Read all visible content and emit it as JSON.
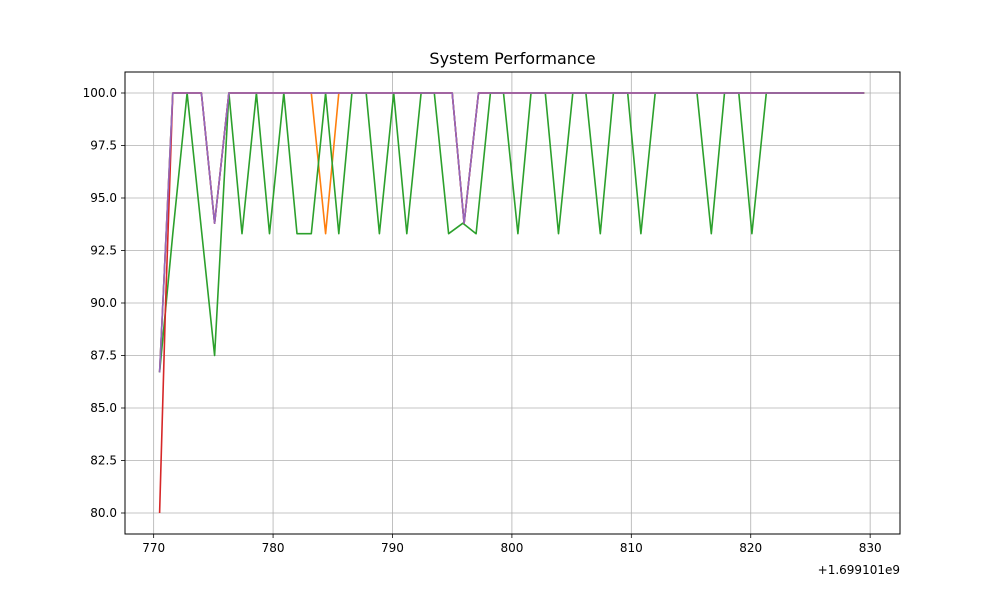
{
  "chart_data": {
    "type": "line",
    "title": "System Performance",
    "xlabel": "",
    "ylabel": "",
    "x_offset_label": "+1.699101e9",
    "xlim": [
      767.6,
      832.5
    ],
    "ylim": [
      79.0,
      101.0
    ],
    "x_ticks": [
      770,
      780,
      790,
      800,
      810,
      820,
      830
    ],
    "x_tick_labels": [
      "770",
      "780",
      "790",
      "800",
      "810",
      "820",
      "830"
    ],
    "y_ticks": [
      80.0,
      82.5,
      85.0,
      87.5,
      90.0,
      92.5,
      95.0,
      97.5,
      100.0
    ],
    "y_tick_labels": [
      "80.0",
      "82.5",
      "85.0",
      "87.5",
      "90.0",
      "92.5",
      "95.0",
      "97.5",
      "100.0"
    ],
    "grid": true,
    "legend": "none",
    "series": [
      {
        "color": "#1f77b4",
        "x": [
          770.5,
          771.6,
          774.0,
          775.1,
          776.3,
          795.0,
          796.0,
          797.2,
          829.5
        ],
        "y": [
          86.7,
          100.0,
          100.0,
          93.8,
          100.0,
          100.0,
          93.8,
          100.0,
          100.0
        ]
      },
      {
        "color": "#ff7f0e",
        "x": [
          770.5,
          771.6,
          774.0,
          775.1,
          776.3,
          783.2,
          784.4,
          785.5,
          795.0,
          796.0,
          797.2,
          829.5
        ],
        "y": [
          86.7,
          100.0,
          100.0,
          93.8,
          100.0,
          100.0,
          93.3,
          100.0,
          100.0,
          93.8,
          100.0,
          100.0
        ]
      },
      {
        "color": "#2ca02c",
        "x": [
          770.5,
          771.6,
          772.8,
          775.1,
          776.3,
          777.4,
          778.6,
          779.7,
          780.9,
          782.0,
          783.2,
          784.4,
          785.5,
          786.6,
          787.8,
          788.9,
          790.1,
          791.2,
          792.4,
          793.5,
          794.7,
          795.9,
          797.0,
          798.2,
          799.3,
          800.5,
          801.6,
          802.8,
          803.9,
          805.1,
          806.2,
          807.4,
          808.5,
          809.7,
          810.8,
          812.0,
          815.5,
          816.7,
          817.8,
          819.0,
          820.1,
          821.3,
          829.5
        ],
        "y": [
          86.7,
          93.3,
          100.0,
          87.5,
          100.0,
          93.3,
          100.0,
          93.3,
          100.0,
          93.3,
          93.3,
          100.0,
          93.3,
          100.0,
          100.0,
          93.3,
          100.0,
          93.3,
          100.0,
          100.0,
          93.3,
          93.8,
          93.3,
          100.0,
          100.0,
          93.3,
          100.0,
          100.0,
          93.3,
          100.0,
          100.0,
          93.3,
          100.0,
          100.0,
          93.3,
          100.0,
          100.0,
          93.3,
          100.0,
          100.0,
          93.3,
          100.0,
          100.0
        ]
      },
      {
        "color": "#d62728",
        "x": [
          770.5,
          771.0,
          771.6,
          774.0,
          775.1,
          776.3,
          795.0,
          796.0,
          797.2,
          829.5
        ],
        "y": [
          80.0,
          90.0,
          100.0,
          100.0,
          93.8,
          100.0,
          100.0,
          93.8,
          100.0,
          100.0
        ]
      },
      {
        "color": "#9467bd",
        "x": [
          770.5,
          771.6,
          774.0,
          775.1,
          776.3,
          795.0,
          796.0,
          797.2,
          829.5
        ],
        "y": [
          86.7,
          100.0,
          100.0,
          93.8,
          100.0,
          100.0,
          93.8,
          100.0,
          100.0
        ]
      }
    ]
  }
}
